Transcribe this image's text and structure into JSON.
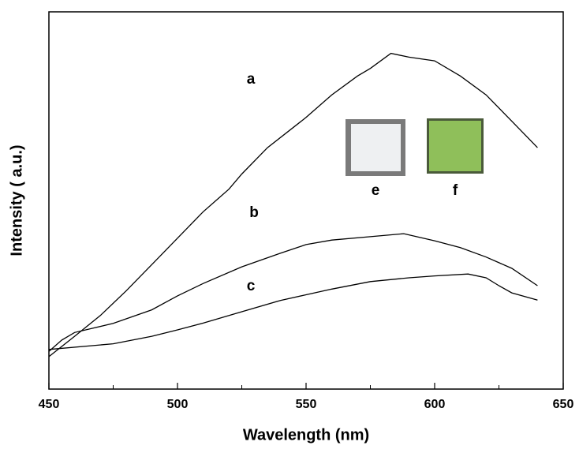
{
  "chart_data": {
    "type": "line",
    "x_label": "Wavelength (nm)",
    "y_label": "Intensity ( a.u.)",
    "xlim": [
      450,
      650
    ],
    "xticks": [
      450,
      500,
      550,
      600,
      650
    ],
    "ylim": [
      0,
      100
    ],
    "series": [
      {
        "name": "a",
        "color": "#000000",
        "x": [
          450,
          460,
          470,
          480,
          490,
          500,
          510,
          520,
          525,
          535,
          550,
          560,
          570,
          575,
          583,
          590,
          600,
          610,
          620,
          630,
          640
        ],
        "values": [
          8.6,
          14,
          19.5,
          26,
          33,
          40,
          47,
          53,
          57,
          64,
          72,
          78,
          83,
          85,
          89,
          88,
          87,
          83,
          78,
          71,
          64
        ]
      },
      {
        "name": "b",
        "color": "#000000",
        "x": [
          450,
          455,
          460,
          475,
          490,
          500,
          510,
          525,
          540,
          550,
          560,
          575,
          588,
          600,
          610,
          620,
          630,
          640
        ],
        "values": [
          10,
          13,
          15,
          17.4,
          21,
          24.7,
          28,
          32.4,
          36,
          38.3,
          39.5,
          40.4,
          41.2,
          39.3,
          37.5,
          35,
          32,
          27.4
        ]
      },
      {
        "name": "c",
        "color": "#000000",
        "x": [
          450,
          475,
          490,
          500,
          510,
          525,
          540,
          550,
          560,
          575,
          590,
          600,
          613,
          620,
          625,
          630,
          640
        ],
        "values": [
          10.5,
          12,
          14,
          15.7,
          17.5,
          20.5,
          23.5,
          25,
          26.5,
          28.5,
          29.5,
          30,
          30.5,
          29.5,
          27.4,
          25.5,
          23.6
        ]
      }
    ],
    "annotations": [
      "e",
      "f"
    ]
  }
}
